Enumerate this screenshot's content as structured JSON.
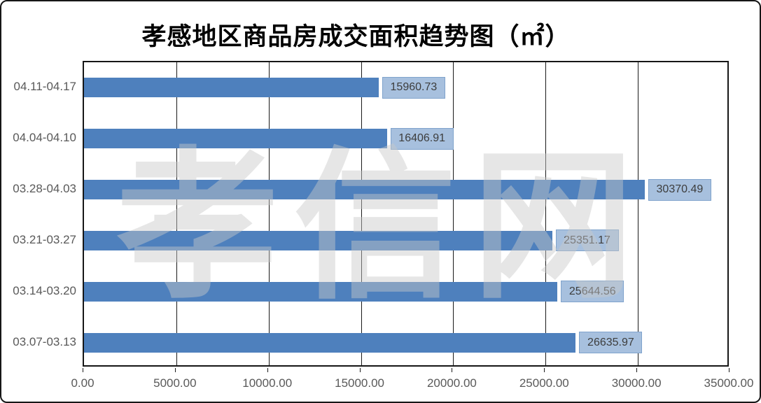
{
  "title": "孝感地区商品房成交面积趋势图（㎡）",
  "watermark": "孝信网",
  "colors": {
    "bar": "#4e80bd",
    "value_box_fill": "#a7c0de",
    "value_box_border": "#7fa3cc",
    "value_text": "#3d3d3d",
    "axis_text": "#595959",
    "grid": "#1a1a1a",
    "watermark": "#c9c9c9"
  },
  "chart_data": {
    "type": "bar",
    "orientation": "horizontal",
    "title": "孝感地区商品房成交面积趋势图（㎡）",
    "categories": [
      "04.11-04.17",
      "04.04-04.10",
      "03.28-04.03",
      "03.21-03.27",
      "03.14-03.20",
      "03.07-03.13"
    ],
    "values": [
      15960.73,
      16406.91,
      30370.49,
      25351.17,
      25644.56,
      26635.97
    ],
    "value_labels": [
      "15960.73",
      "16406.91",
      "30370.49",
      "25351.17",
      "25644.56",
      "26635.97"
    ],
    "x_tick_labels": [
      "0.00",
      "5000.00",
      "10000.00",
      "15000.00",
      "20000.00",
      "25000.00",
      "30000.00",
      "35000.00"
    ],
    "x_tick_values": [
      0,
      5000,
      10000,
      15000,
      20000,
      25000,
      30000,
      35000
    ],
    "xlim": [
      0,
      35000
    ],
    "grid": true,
    "legend": false,
    "data_labels": "boxed, outside end of bar"
  }
}
